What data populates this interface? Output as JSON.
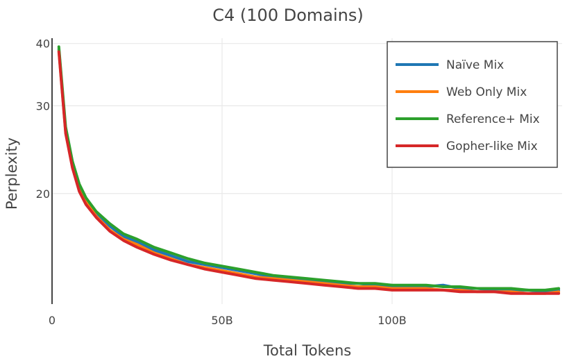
{
  "chart_data": {
    "type": "line",
    "title": "C4 (100 Domains)",
    "xlabel": "Total Tokens",
    "ylabel": "Perplexity",
    "xlim": [
      0,
      150000000000
    ],
    "ylim": [
      12,
      41
    ],
    "y_scale": "log",
    "x_ticks": [
      {
        "value": 0,
        "label": "0"
      },
      {
        "value": 50000000000,
        "label": "50B"
      },
      {
        "value": 100000000000,
        "label": "100B"
      }
    ],
    "y_ticks": [
      {
        "value": 20,
        "label": "20"
      },
      {
        "value": 30,
        "label": "30"
      },
      {
        "value": 40,
        "label": "40"
      }
    ],
    "grid": true,
    "legend_position": "top-right",
    "x": [
      2000000000.0,
      4000000000.0,
      6000000000.0,
      8000000000.0,
      10000000000.0,
      13000000000.0,
      17000000000.0,
      21000000000.0,
      25000000000.0,
      30000000000.0,
      35000000000.0,
      40000000000.0,
      45000000000.0,
      50000000000.0,
      55000000000.0,
      60000000000.0,
      65000000000.0,
      70000000000.0,
      75000000000.0,
      80000000000.0,
      85000000000.0,
      90000000000.0,
      95000000000.0,
      100000000000.0,
      105000000000.0,
      110000000000.0,
      115000000000.0,
      120000000000.0,
      125000000000.0,
      130000000000.0,
      135000000000.0,
      140000000000.0,
      145000000000.0,
      149000000000.0
    ],
    "series": [
      {
        "name": "Naïve Mix",
        "color": "#1f77b4",
        "values": [
          39.0,
          26.8,
          22.8,
          20.6,
          19.4,
          18.2,
          17.2,
          16.4,
          16.0,
          15.4,
          15.0,
          14.6,
          14.4,
          14.2,
          14.0,
          13.8,
          13.6,
          13.5,
          13.4,
          13.3,
          13.2,
          13.2,
          13.1,
          13.0,
          13.0,
          13.0,
          13.1,
          12.9,
          12.9,
          12.8,
          12.8,
          12.8,
          12.7,
          12.8
        ]
      },
      {
        "name": "Web Only Mix",
        "color": "#ff7f0e",
        "values": [
          38.7,
          26.5,
          22.6,
          20.4,
          19.2,
          18.0,
          16.9,
          16.2,
          15.8,
          15.2,
          14.8,
          14.4,
          14.2,
          14.0,
          13.8,
          13.6,
          13.5,
          13.4,
          13.3,
          13.2,
          13.1,
          13.0,
          13.0,
          12.9,
          12.9,
          12.9,
          12.8,
          12.8,
          12.7,
          12.7,
          12.7,
          12.6,
          12.6,
          12.7
        ]
      },
      {
        "name": "Reference+ Mix",
        "color": "#2ca02c",
        "values": [
          39.4,
          27.2,
          23.2,
          20.9,
          19.6,
          18.4,
          17.4,
          16.6,
          16.2,
          15.6,
          15.2,
          14.8,
          14.5,
          14.3,
          14.1,
          13.9,
          13.7,
          13.6,
          13.5,
          13.4,
          13.3,
          13.2,
          13.2,
          13.1,
          13.1,
          13.1,
          13.0,
          13.0,
          12.9,
          12.9,
          12.9,
          12.8,
          12.8,
          12.9
        ]
      },
      {
        "name": "Gopher-like Mix",
        "color": "#d62728",
        "values": [
          38.5,
          26.4,
          22.5,
          20.2,
          19.0,
          17.9,
          16.8,
          16.1,
          15.6,
          15.1,
          14.7,
          14.4,
          14.1,
          13.9,
          13.7,
          13.5,
          13.4,
          13.3,
          13.2,
          13.1,
          13.0,
          12.9,
          12.9,
          12.8,
          12.8,
          12.8,
          12.8,
          12.7,
          12.7,
          12.7,
          12.6,
          12.6,
          12.6,
          12.6
        ]
      }
    ]
  }
}
